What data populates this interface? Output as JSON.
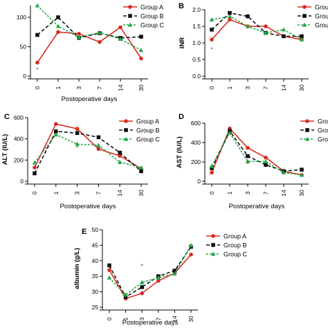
{
  "colors": {
    "Group A": "#d62b1f",
    "Group B": "#111111",
    "Group C": "#22a84a"
  },
  "chart_data": [
    {
      "panel_label": "",
      "type": "line",
      "x": [
        "0",
        "1",
        "3",
        "7",
        "14",
        "30"
      ],
      "xlabel": "Postoperative days",
      "ylabel": "",
      "ylim": [
        0,
        120
      ],
      "yticks": [
        0,
        50,
        100
      ],
      "series": [
        {
          "name": "Group A",
          "values": [
            23,
            75,
            72,
            58,
            83,
            30
          ]
        },
        {
          "name": "Group B",
          "values": [
            70,
            100,
            65,
            73,
            65,
            67
          ]
        },
        {
          "name": "Group C",
          "values": [
            120,
            85,
            66,
            74,
            63,
            44
          ]
        }
      ],
      "annotations": [
        {
          "text": "*",
          "x_index": 0,
          "y": 12
        }
      ],
      "legend": "top-right",
      "grid": false
    },
    {
      "panel_label": "B",
      "type": "line",
      "x": [
        "0",
        "1",
        "3",
        "7",
        "14",
        "30"
      ],
      "xlabel": "",
      "ylabel": "INR",
      "ylim": [
        0,
        2.0
      ],
      "yticks": [
        0.0,
        0.5,
        1.0,
        1.5,
        2.0
      ],
      "series": [
        {
          "name": "Group A",
          "values": [
            1.1,
            1.7,
            1.5,
            1.5,
            1.2,
            1.1
          ]
        },
        {
          "name": "Group B",
          "values": [
            1.4,
            1.9,
            1.8,
            1.3,
            1.2,
            1.2
          ]
        },
        {
          "name": "Group C",
          "values": [
            1.7,
            1.8,
            1.5,
            1.3,
            1.4,
            1.1
          ]
        }
      ],
      "annotations": [
        {
          "text": "*",
          "x_index": 0,
          "y": 0.82
        }
      ],
      "legend": "right",
      "grid": false
    },
    {
      "panel_label": "C",
      "type": "line",
      "x": [
        "0",
        "1",
        "3",
        "7",
        "14",
        "30"
      ],
      "xlabel": "Postoperative days",
      "ylabel": "ALT (IU/L)",
      "ylim": [
        0,
        600
      ],
      "yticks": [
        0,
        200,
        400,
        600
      ],
      "series": [
        {
          "name": "Group A",
          "values": [
            130,
            540,
            495,
            305,
            240,
            120
          ]
        },
        {
          "name": "Group B",
          "values": [
            75,
            470,
            455,
            415,
            270,
            95
          ]
        },
        {
          "name": "Group C",
          "values": [
            175,
            440,
            350,
            340,
            180,
            130
          ]
        }
      ],
      "annotations": [
        {
          "text": "*",
          "x_index": 2,
          "y": 320
        },
        {
          "text": "*",
          "x_index": 3,
          "y": 305
        }
      ],
      "legend": "top-right",
      "grid": false
    },
    {
      "panel_label": "D",
      "type": "line",
      "x": [
        "0",
        "1",
        "3",
        "7",
        "14",
        "30"
      ],
      "xlabel": "Postoperative days",
      "ylabel": "AST (IU/L)",
      "ylim": [
        0,
        600
      ],
      "yticks": [
        0,
        200,
        400,
        600
      ],
      "series": [
        {
          "name": "Group A",
          "values": [
            90,
            545,
            345,
            245,
            105,
            65
          ]
        },
        {
          "name": "Group B",
          "values": [
            135,
            520,
            260,
            170,
            105,
            120
          ]
        },
        {
          "name": "Group C",
          "values": [
            155,
            500,
            205,
            205,
            90,
            65
          ]
        }
      ],
      "annotations": [
        {
          "text": "*",
          "x_index": 2,
          "y": 185
        }
      ],
      "legend": "top-right",
      "grid": false
    },
    {
      "panel_label": "E",
      "type": "line",
      "x": [
        "0",
        "1",
        "3",
        "7",
        "14",
        "30"
      ],
      "xlabel": "Postoperative days",
      "ylabel": "albumin (g/L)",
      "ylim": [
        25,
        50
      ],
      "yticks": [
        25,
        30,
        35,
        40,
        45,
        50
      ],
      "series": [
        {
          "name": "Group A",
          "values": [
            37.0,
            27.8,
            29.5,
            33.5,
            36.0,
            42.0
          ]
        },
        {
          "name": "Group B",
          "values": [
            38.5,
            28.3,
            31.5,
            35.0,
            36.8,
            44.5
          ]
        },
        {
          "name": "Group C",
          "values": [
            34.5,
            29.0,
            33.0,
            34.5,
            35.8,
            45.0
          ]
        }
      ],
      "annotations": [
        {
          "text": "*",
          "x_index": 2,
          "y": 38.5
        }
      ],
      "legend": "top-right",
      "grid": false
    }
  ]
}
